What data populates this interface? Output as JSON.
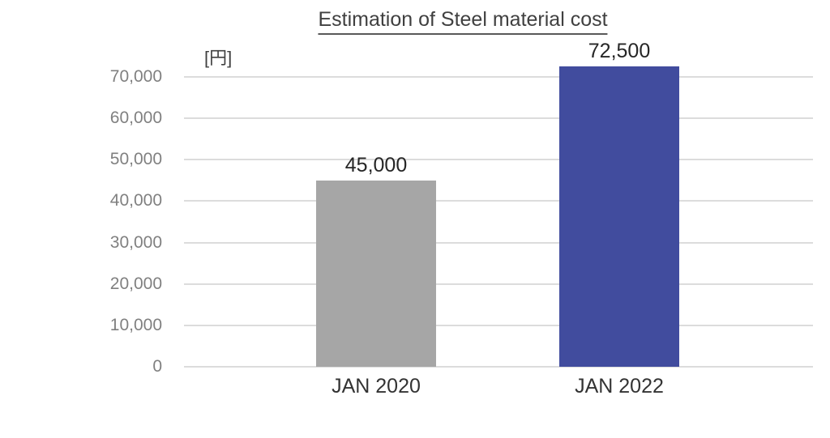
{
  "title": "Estimation of Steel material cost",
  "unit_label": "[円]",
  "colors": {
    "bar_jan_2020": "#a6a6a6",
    "bar_jan_2022": "#414c9e",
    "gridline": "#dcdcdc",
    "tick_label_text": "#808080",
    "title_text": "#404040",
    "value_label_text": "#262626"
  },
  "chart_data": {
    "type": "bar",
    "title": "Estimation of Steel material cost",
    "ylabel": "[円]",
    "xlabel": "",
    "categories": [
      "JAN 2020",
      "JAN 2022"
    ],
    "values": [
      45000,
      72500
    ],
    "value_labels": [
      "45,000",
      "72,500"
    ],
    "bar_colors": [
      "#a6a6a6",
      "#414c9e"
    ],
    "ylim": [
      0,
      70000
    ],
    "ytick_step": 10000,
    "ytick_labels": [
      "0",
      "10,000",
      "20,000",
      "30,000",
      "40,000",
      "50,000",
      "60,000",
      "70,000"
    ],
    "grid": true,
    "legend_position": "none"
  }
}
